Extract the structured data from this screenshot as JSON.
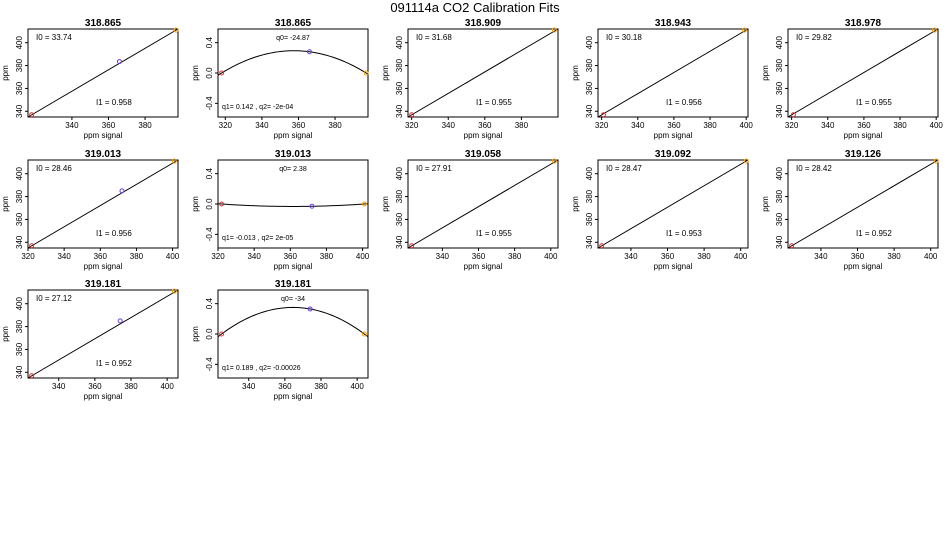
{
  "figure": {
    "title": "091114a   CO2 Calibration Fits"
  },
  "chart_data": [
    {
      "type": "line",
      "kind": "linear",
      "title": "318.865",
      "xlabel": "ppm signal",
      "ylabel": "ppm",
      "xlim": [
        316,
        398
      ],
      "ylim": [
        335,
        412
      ],
      "x_ticks": [
        "340",
        "360",
        "380"
      ],
      "y_ticks": [
        "340",
        "360",
        "380",
        "400"
      ],
      "annotation_top": "I0 =  33.74",
      "annotation_bottom": "I1 =  0.958",
      "points": [
        {
          "x": 318,
          "y": 337,
          "color": "#e03030"
        },
        {
          "x": 366,
          "y": 383.5,
          "color": "#6a3de8"
        },
        {
          "x": 397,
          "y": 411,
          "color": "#f2a000"
        }
      ],
      "line": [
        [
          316,
          335
        ],
        [
          398,
          412
        ]
      ]
    },
    {
      "type": "line",
      "kind": "quadratic",
      "title": "318.865",
      "xlabel": "ppm signal",
      "ylabel": "ppm",
      "xlim": [
        316,
        398
      ],
      "ylim": [
        -0.58,
        0.58
      ],
      "x_ticks": [
        "320",
        "340",
        "360",
        "380"
      ],
      "y_ticks": [
        "-0.4",
        "0.0",
        "0.4"
      ],
      "annotation_top": "q0= -24.87",
      "annotation_bottom": "q1= 0.142 , q2= -2e-04",
      "points": [
        {
          "x": 318,
          "y": 0.0,
          "color": "#e03030"
        },
        {
          "x": 366,
          "y": 0.28,
          "color": "#6a3de8"
        },
        {
          "x": 397,
          "y": 0.0,
          "color": "#f2a000"
        }
      ],
      "curve": {
        "x1": 318,
        "xm": 366,
        "x3": 397,
        "y1": 0.0,
        "ym": 0.28,
        "y3": 0.0
      }
    },
    {
      "type": "line",
      "kind": "linear",
      "title": "318.909",
      "xlabel": "ppm signal",
      "ylabel": "ppm",
      "xlim": [
        318,
        400
      ],
      "ylim": [
        335,
        412
      ],
      "x_ticks": [
        "320",
        "340",
        "360",
        "380"
      ],
      "y_ticks": [
        "340",
        "360",
        "380",
        "400"
      ],
      "annotation_top": "I0 =  31.68",
      "annotation_bottom": "I1 =  0.955",
      "points": [
        {
          "x": 320,
          "y": 337,
          "color": "#e03030"
        },
        {
          "x": 398,
          "y": 411,
          "color": "#f2a000"
        }
      ],
      "line": [
        [
          318,
          335
        ],
        [
          400,
          412
        ]
      ]
    },
    {
      "type": "line",
      "kind": "linear",
      "title": "318.943",
      "xlabel": "ppm signal",
      "ylabel": "ppm",
      "xlim": [
        318,
        401
      ],
      "ylim": [
        335,
        412
      ],
      "x_ticks": [
        "320",
        "340",
        "360",
        "380",
        "400"
      ],
      "y_ticks": [
        "340",
        "360",
        "380",
        "400"
      ],
      "annotation_top": "I0 =  30.18",
      "annotation_bottom": "I1 =  0.956",
      "points": [
        {
          "x": 321,
          "y": 337,
          "color": "#e03030"
        },
        {
          "x": 399,
          "y": 411,
          "color": "#f2a000"
        }
      ],
      "line": [
        [
          318,
          335
        ],
        [
          401,
          412
        ]
      ]
    },
    {
      "type": "line",
      "kind": "linear",
      "title": "318.978",
      "xlabel": "ppm signal",
      "ylabel": "ppm",
      "xlim": [
        318,
        401
      ],
      "ylim": [
        335,
        412
      ],
      "x_ticks": [
        "320",
        "340",
        "360",
        "380",
        "400"
      ],
      "y_ticks": [
        "340",
        "360",
        "380",
        "400"
      ],
      "annotation_top": "I0 =  29.82",
      "annotation_bottom": "I1 =  0.955",
      "points": [
        {
          "x": 321,
          "y": 337,
          "color": "#e03030"
        },
        {
          "x": 399,
          "y": 411,
          "color": "#f2a000"
        }
      ],
      "line": [
        [
          318,
          335
        ],
        [
          401,
          412
        ]
      ]
    },
    {
      "type": "line",
      "kind": "linear",
      "title": "319.013",
      "xlabel": "ppm signal",
      "ylabel": "ppm",
      "xlim": [
        320,
        403
      ],
      "ylim": [
        335,
        412
      ],
      "x_ticks": [
        "320",
        "340",
        "360",
        "380",
        "400"
      ],
      "y_ticks": [
        "340",
        "360",
        "380",
        "400"
      ],
      "annotation_top": "I0 =  28.46",
      "annotation_bottom": "I1 =  0.956",
      "points": [
        {
          "x": 322,
          "y": 337,
          "color": "#e03030"
        },
        {
          "x": 372,
          "y": 385,
          "color": "#6a3de8"
        },
        {
          "x": 401,
          "y": 411,
          "color": "#f2a000"
        }
      ],
      "line": [
        [
          320,
          335
        ],
        [
          403,
          412
        ]
      ]
    },
    {
      "type": "line",
      "kind": "quadratic",
      "title": "319.013",
      "xlabel": "ppm signal",
      "ylabel": "ppm",
      "xlim": [
        320,
        403
      ],
      "ylim": [
        -0.58,
        0.58
      ],
      "x_ticks": [
        "320",
        "340",
        "360",
        "380",
        "400"
      ],
      "y_ticks": [
        "-0.4",
        "0.0",
        "0.4"
      ],
      "annotation_top": "q0= 2.38",
      "annotation_bottom": "q1= -0.013 , q2= 2e-05",
      "points": [
        {
          "x": 322,
          "y": 0.0,
          "color": "#e03030"
        },
        {
          "x": 372,
          "y": -0.03,
          "color": "#6a3de8"
        },
        {
          "x": 401,
          "y": 0.0,
          "color": "#f2a000"
        }
      ],
      "curve": {
        "x1": 322,
        "xm": 372,
        "x3": 401,
        "y1": 0.0,
        "ym": -0.03,
        "y3": 0.0
      }
    },
    {
      "type": "line",
      "kind": "linear",
      "title": "319.058",
      "xlabel": "ppm signal",
      "ylabel": "ppm",
      "xlim": [
        321,
        404
      ],
      "ylim": [
        335,
        412
      ],
      "x_ticks": [
        "340",
        "360",
        "380",
        "400"
      ],
      "y_ticks": [
        "340",
        "360",
        "380",
        "400"
      ],
      "annotation_top": "I0 =  27.91",
      "annotation_bottom": "I1 =  0.955",
      "points": [
        {
          "x": 323,
          "y": 337,
          "color": "#e03030"
        },
        {
          "x": 402,
          "y": 411,
          "color": "#f2a000"
        }
      ],
      "line": [
        [
          321,
          335
        ],
        [
          404,
          412
        ]
      ]
    },
    {
      "type": "line",
      "kind": "linear",
      "title": "319.092",
      "xlabel": "ppm signal",
      "ylabel": "ppm",
      "xlim": [
        322,
        404
      ],
      "ylim": [
        335,
        412
      ],
      "x_ticks": [
        "340",
        "360",
        "380",
        "400"
      ],
      "y_ticks": [
        "340",
        "360",
        "380",
        "400"
      ],
      "annotation_top": "I0 =  28.47",
      "annotation_bottom": "I1 =  0.953",
      "points": [
        {
          "x": 324,
          "y": 337,
          "color": "#e03030"
        },
        {
          "x": 403,
          "y": 411,
          "color": "#f2a000"
        }
      ],
      "line": [
        [
          322,
          335
        ],
        [
          404,
          412
        ]
      ]
    },
    {
      "type": "line",
      "kind": "linear",
      "title": "319.126",
      "xlabel": "ppm signal",
      "ylabel": "ppm",
      "xlim": [
        322,
        404
      ],
      "ylim": [
        335,
        412
      ],
      "x_ticks": [
        "340",
        "360",
        "380",
        "400"
      ],
      "y_ticks": [
        "340",
        "360",
        "380",
        "400"
      ],
      "annotation_top": "I0 =  28.42",
      "annotation_bottom": "I1 =  0.952",
      "points": [
        {
          "x": 324,
          "y": 337,
          "color": "#e03030"
        },
        {
          "x": 403,
          "y": 411,
          "color": "#f2a000"
        }
      ],
      "line": [
        [
          322,
          335
        ],
        [
          404,
          412
        ]
      ]
    },
    {
      "type": "line",
      "kind": "linear",
      "title": "319.181",
      "xlabel": "ppm signal",
      "ylabel": "ppm",
      "xlim": [
        323,
        406
      ],
      "ylim": [
        335,
        412
      ],
      "x_ticks": [
        "340",
        "360",
        "380",
        "400"
      ],
      "y_ticks": [
        "340",
        "360",
        "380",
        "400"
      ],
      "annotation_top": "I0 =  27.12",
      "annotation_bottom": "I1 =  0.952",
      "points": [
        {
          "x": 325,
          "y": 337,
          "color": "#e03030"
        },
        {
          "x": 374,
          "y": 385,
          "color": "#6a3de8"
        },
        {
          "x": 404,
          "y": 411,
          "color": "#f2a000"
        }
      ],
      "line": [
        [
          323,
          335
        ],
        [
          406,
          412
        ]
      ]
    },
    {
      "type": "line",
      "kind": "quadratic",
      "title": "319.181",
      "xlabel": "ppm signal",
      "ylabel": "ppm",
      "xlim": [
        323,
        406
      ],
      "ylim": [
        -0.58,
        0.58
      ],
      "x_ticks": [
        "340",
        "360",
        "380",
        "400"
      ],
      "y_ticks": [
        "-0.4",
        "0.0",
        "0.4"
      ],
      "annotation_top": "q0= -34",
      "annotation_bottom": "q1= 0.189 , q2= -0.00026",
      "points": [
        {
          "x": 325,
          "y": 0.0,
          "color": "#e03030"
        },
        {
          "x": 374,
          "y": 0.33,
          "color": "#6a3de8"
        },
        {
          "x": 404,
          "y": 0.0,
          "color": "#f2a000"
        }
      ],
      "curve": {
        "x1": 325,
        "xm": 374,
        "x3": 404,
        "y1": 0.0,
        "ym": 0.33,
        "y3": 0.0
      }
    }
  ]
}
